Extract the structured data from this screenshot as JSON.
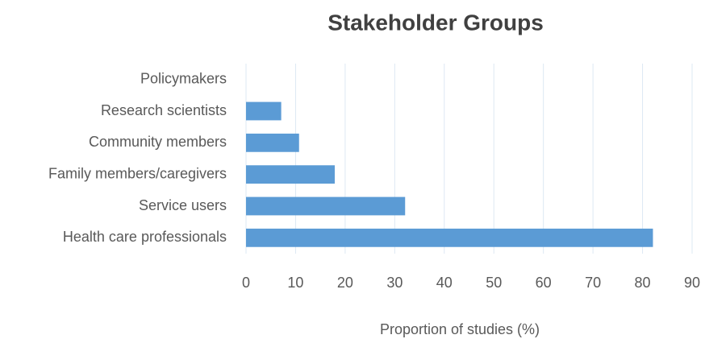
{
  "chart_data": {
    "type": "bar",
    "orientation": "horizontal",
    "title": "Stakeholder Groups",
    "x_label": "Proportion of studies (%)",
    "categories": [
      "Policymakers",
      "Research scientists",
      "Community members",
      "Family members/caregivers",
      "Service users",
      "Health care professionals"
    ],
    "values": [
      0,
      7.1,
      10.7,
      17.9,
      32.1,
      82.1
    ],
    "color": "#5b9bd5",
    "xlim": [
      0,
      90
    ],
    "xticks": [
      0,
      10,
      20,
      30,
      40,
      50,
      60,
      70,
      80,
      90
    ],
    "grid": true
  }
}
